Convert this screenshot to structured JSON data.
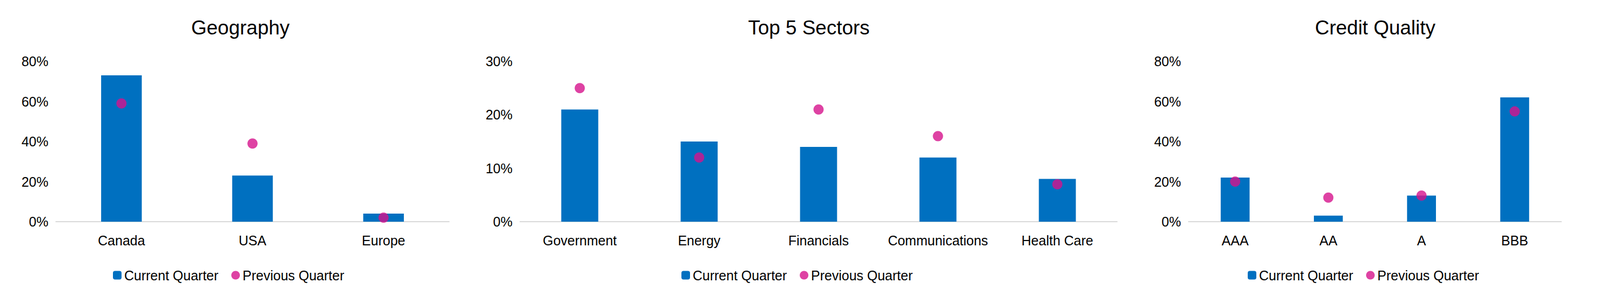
{
  "chart_data": [
    {
      "type": "bar",
      "title": "Geography",
      "categories": [
        "Canada",
        "USA",
        "Europe"
      ],
      "series": [
        {
          "name": "Current Quarter",
          "type": "bar",
          "color": "#0070c0",
          "values": [
            73,
            23,
            4
          ]
        },
        {
          "name": "Previous Quarter",
          "type": "scatter",
          "color": "#d6138c",
          "marker": "circle",
          "values": [
            59,
            39,
            2
          ]
        }
      ],
      "ylim": [
        0,
        80
      ],
      "yticks": [
        {
          "value": 0,
          "label": "0%"
        },
        {
          "value": 20,
          "label": "20%"
        },
        {
          "value": 40,
          "label": "40%"
        },
        {
          "value": 60,
          "label": "60%"
        },
        {
          "value": 80,
          "label": "80%"
        }
      ],
      "grid": false,
      "legend": "bottom"
    },
    {
      "type": "bar",
      "title": "Top 5 Sectors",
      "categories": [
        "Government",
        "Energy",
        "Financials",
        "Communications",
        "Health Care"
      ],
      "series": [
        {
          "name": "Current Quarter",
          "type": "bar",
          "color": "#0070c0",
          "values": [
            21,
            15,
            14,
            12,
            8
          ]
        },
        {
          "name": "Previous Quarter",
          "type": "scatter",
          "color": "#d6138c",
          "marker": "circle",
          "values": [
            25,
            12,
            21,
            16,
            7
          ]
        }
      ],
      "ylim": [
        0,
        30
      ],
      "yticks": [
        {
          "value": 0,
          "label": "0%"
        },
        {
          "value": 10,
          "label": "10%"
        },
        {
          "value": 20,
          "label": "20%"
        },
        {
          "value": 30,
          "label": "30%"
        }
      ],
      "grid": false,
      "legend": "bottom"
    },
    {
      "type": "bar",
      "title": "Credit Quality",
      "categories": [
        "AAA",
        "AA",
        "A",
        "BBB"
      ],
      "series": [
        {
          "name": "Current Quarter",
          "type": "bar",
          "color": "#0070c0",
          "values": [
            22,
            3,
            13,
            62
          ]
        },
        {
          "name": "Previous Quarter",
          "type": "scatter",
          "color": "#d6138c",
          "marker": "circle",
          "values": [
            20,
            12,
            13,
            55
          ]
        }
      ],
      "ylim": [
        0,
        80
      ],
      "yticks": [
        {
          "value": 0,
          "label": "0%"
        },
        {
          "value": 20,
          "label": "20%"
        },
        {
          "value": 40,
          "label": "40%"
        },
        {
          "value": 60,
          "label": "60%"
        },
        {
          "value": 80,
          "label": "80%"
        }
      ],
      "grid": false,
      "legend": "bottom"
    }
  ]
}
